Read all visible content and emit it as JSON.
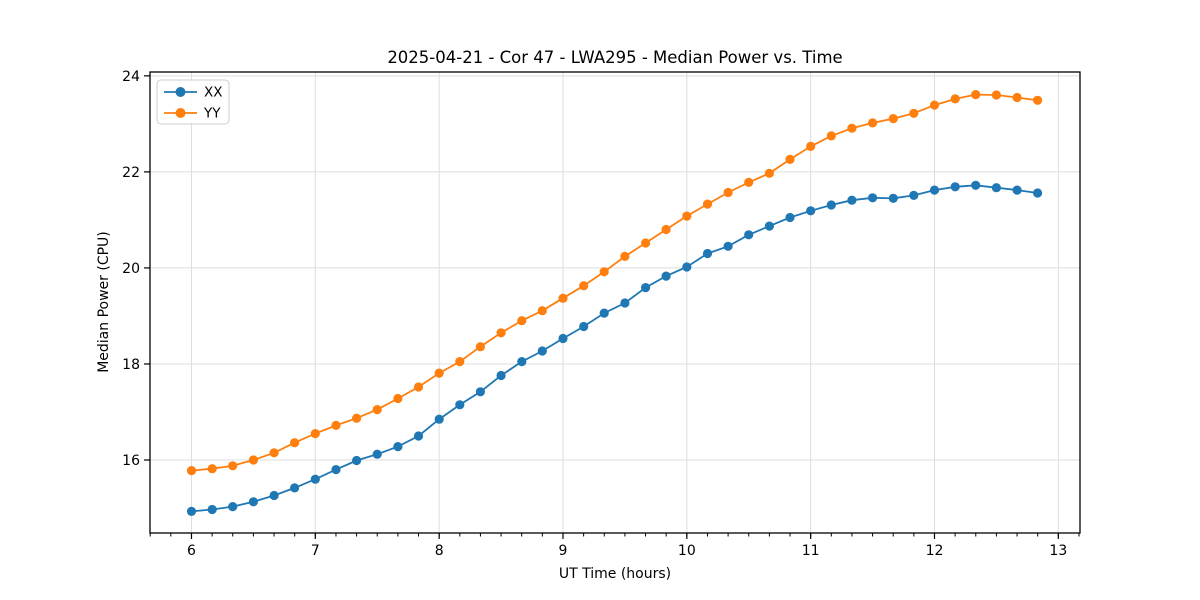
{
  "figure": {
    "title": "2025-04-21 - Cor 47 - LWA295 - Median Power vs. Time",
    "xlabel": "UT Time (hours)",
    "ylabel": "Median Power (CPU)"
  },
  "legend": {
    "items": [
      "XX",
      "YY"
    ]
  },
  "colors": {
    "series_xx": "#1f77b4",
    "series_yy": "#ff7f0e",
    "grid": "#dedede",
    "spine": "#000000",
    "background": "#ffffff"
  },
  "chart_data": {
    "type": "line",
    "title": "2025-04-21 - Cor 47 - LWA295 - Median Power vs. Time",
    "xlabel": "UT Time (hours)",
    "ylabel": "Median Power (CPU)",
    "xlim": [
      5.665,
      13.175
    ],
    "ylim": [
      14.48,
      24.08
    ],
    "x_ticks": [
      6,
      7,
      8,
      9,
      10,
      11,
      12,
      13
    ],
    "y_ticks": [
      16,
      18,
      20,
      22,
      24
    ],
    "x_minor_step": 0.166667,
    "grid": true,
    "legend_position": "upper-left",
    "marker": "circle",
    "x": [
      6.0,
      6.167,
      6.333,
      6.5,
      6.667,
      6.833,
      7.0,
      7.167,
      7.333,
      7.5,
      7.667,
      7.833,
      8.0,
      8.167,
      8.333,
      8.5,
      8.667,
      8.833,
      9.0,
      9.167,
      9.333,
      9.5,
      9.667,
      9.833,
      10.0,
      10.167,
      10.333,
      10.5,
      10.667,
      10.833,
      11.0,
      11.167,
      11.333,
      11.5,
      11.667,
      11.833,
      12.0,
      12.167,
      12.333,
      12.5,
      12.667,
      12.833
    ],
    "series": [
      {
        "name": "XX",
        "color": "#1f77b4",
        "values": [
          14.93,
          14.97,
          15.03,
          15.13,
          15.26,
          15.42,
          15.6,
          15.8,
          15.99,
          16.12,
          16.28,
          16.5,
          16.85,
          17.15,
          17.42,
          17.76,
          18.05,
          18.27,
          18.53,
          18.78,
          19.06,
          19.27,
          19.59,
          19.83,
          20.02,
          20.3,
          20.45,
          20.69,
          20.87,
          21.05,
          21.19,
          21.31,
          21.41,
          21.46,
          21.45,
          21.51,
          21.62,
          21.69,
          21.72,
          21.67,
          21.62,
          21.56
        ]
      },
      {
        "name": "YY",
        "color": "#ff7f0e",
        "values": [
          15.78,
          15.82,
          15.88,
          16.0,
          16.15,
          16.36,
          16.55,
          16.72,
          16.87,
          17.05,
          17.28,
          17.52,
          17.81,
          18.05,
          18.36,
          18.65,
          18.9,
          19.11,
          19.37,
          19.63,
          19.92,
          20.24,
          20.52,
          20.8,
          21.08,
          21.33,
          21.57,
          21.78,
          21.97,
          22.26,
          22.53,
          22.75,
          22.91,
          23.02,
          23.11,
          23.22,
          23.39,
          23.52,
          23.61,
          23.6,
          23.55,
          23.49
        ]
      }
    ]
  }
}
